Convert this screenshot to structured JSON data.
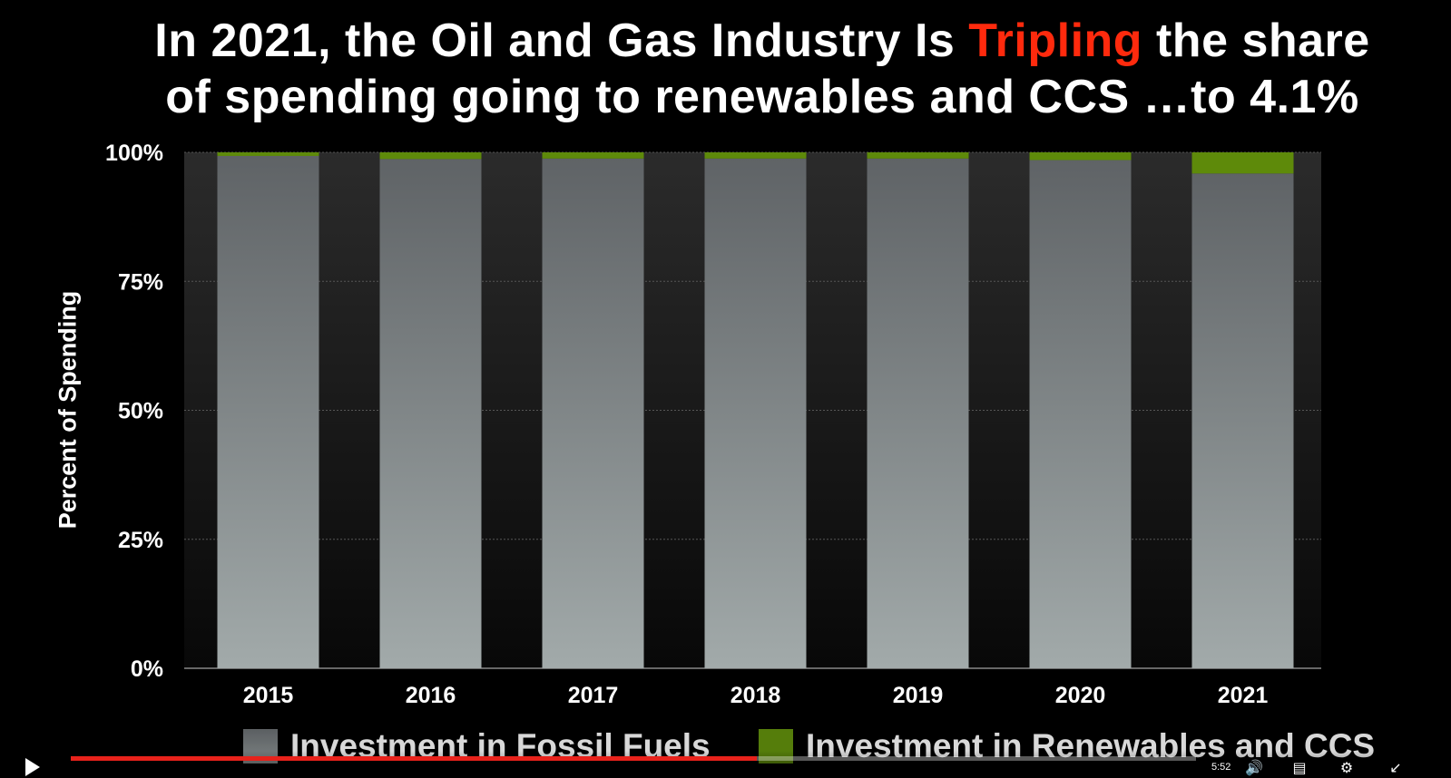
{
  "title": {
    "line1_pre": "In 2021, the Oil and Gas Industry Is ",
    "line1_highlight": "Tripling",
    "line1_post": " the share",
    "line2": "of spending going to renewables and CCS …to 4.1%"
  },
  "colors": {
    "background": "#000000",
    "fossil_top": "#5f6366",
    "fossil_bottom": "#a2aaaa",
    "renewables": "#5e8a0a",
    "renewables_top_band": "#6f9a14",
    "highlight": "#ff2a0d"
  },
  "chart_data": {
    "type": "bar",
    "stacked": true,
    "categories": [
      "2015",
      "2016",
      "2017",
      "2018",
      "2019",
      "2020",
      "2021"
    ],
    "series": [
      {
        "name": "Investment in Fossil Fuels",
        "values": [
          99.3,
          98.7,
          98.8,
          98.8,
          98.8,
          98.5,
          95.9
        ]
      },
      {
        "name": "Investment in Renewables and CCS",
        "values": [
          0.7,
          1.3,
          1.2,
          1.2,
          1.2,
          1.5,
          4.1
        ]
      }
    ],
    "ylabel": "Percent of Spending",
    "xlabel": "",
    "ylim": [
      0,
      100
    ],
    "yticks": [
      "0%",
      "25%",
      "50%",
      "75%",
      "100%"
    ],
    "ytick_values": [
      0,
      25,
      50,
      75,
      100
    ],
    "grid": true,
    "legend_position": "bottom"
  },
  "player": {
    "progress_fraction": 0.61,
    "time": "5:52",
    "icons": [
      "play-icon",
      "volume-icon",
      "subtitles-icon",
      "settings-icon",
      "fullscreen-icon"
    ]
  }
}
